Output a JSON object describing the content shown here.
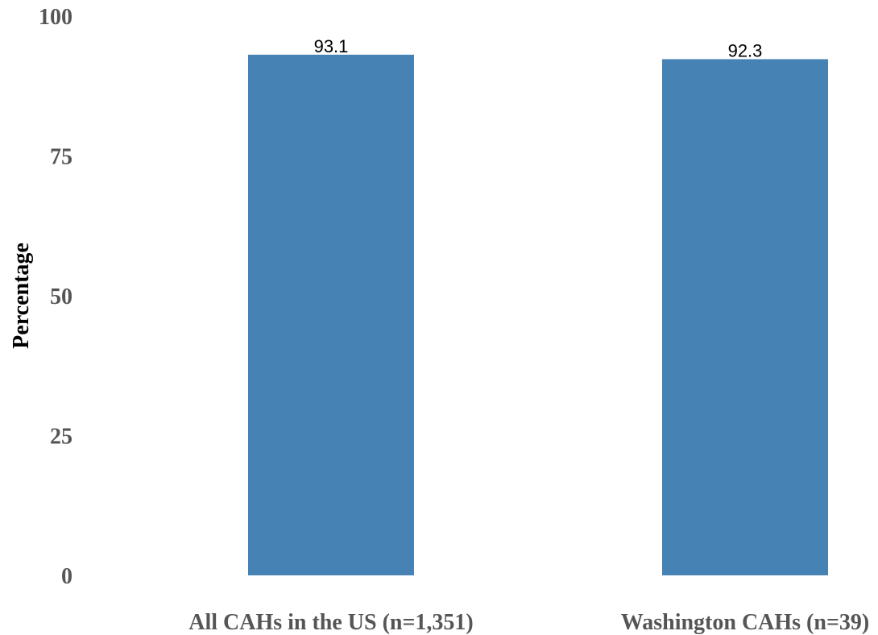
{
  "chart_data": {
    "type": "bar",
    "title": "",
    "xlabel": "",
    "ylabel": "Percentage",
    "ylim": [
      0,
      100
    ],
    "yticks": [
      0,
      25,
      50,
      75,
      100
    ],
    "categories": [
      "All CAHs in the US (n=1,351)",
      "Washington CAHs (n=39)"
    ],
    "values": [
      93.1,
      92.3
    ],
    "data_labels": [
      "93.1",
      "92.3"
    ],
    "bar_color": "#4682b4",
    "grid": false,
    "legend": "none"
  }
}
